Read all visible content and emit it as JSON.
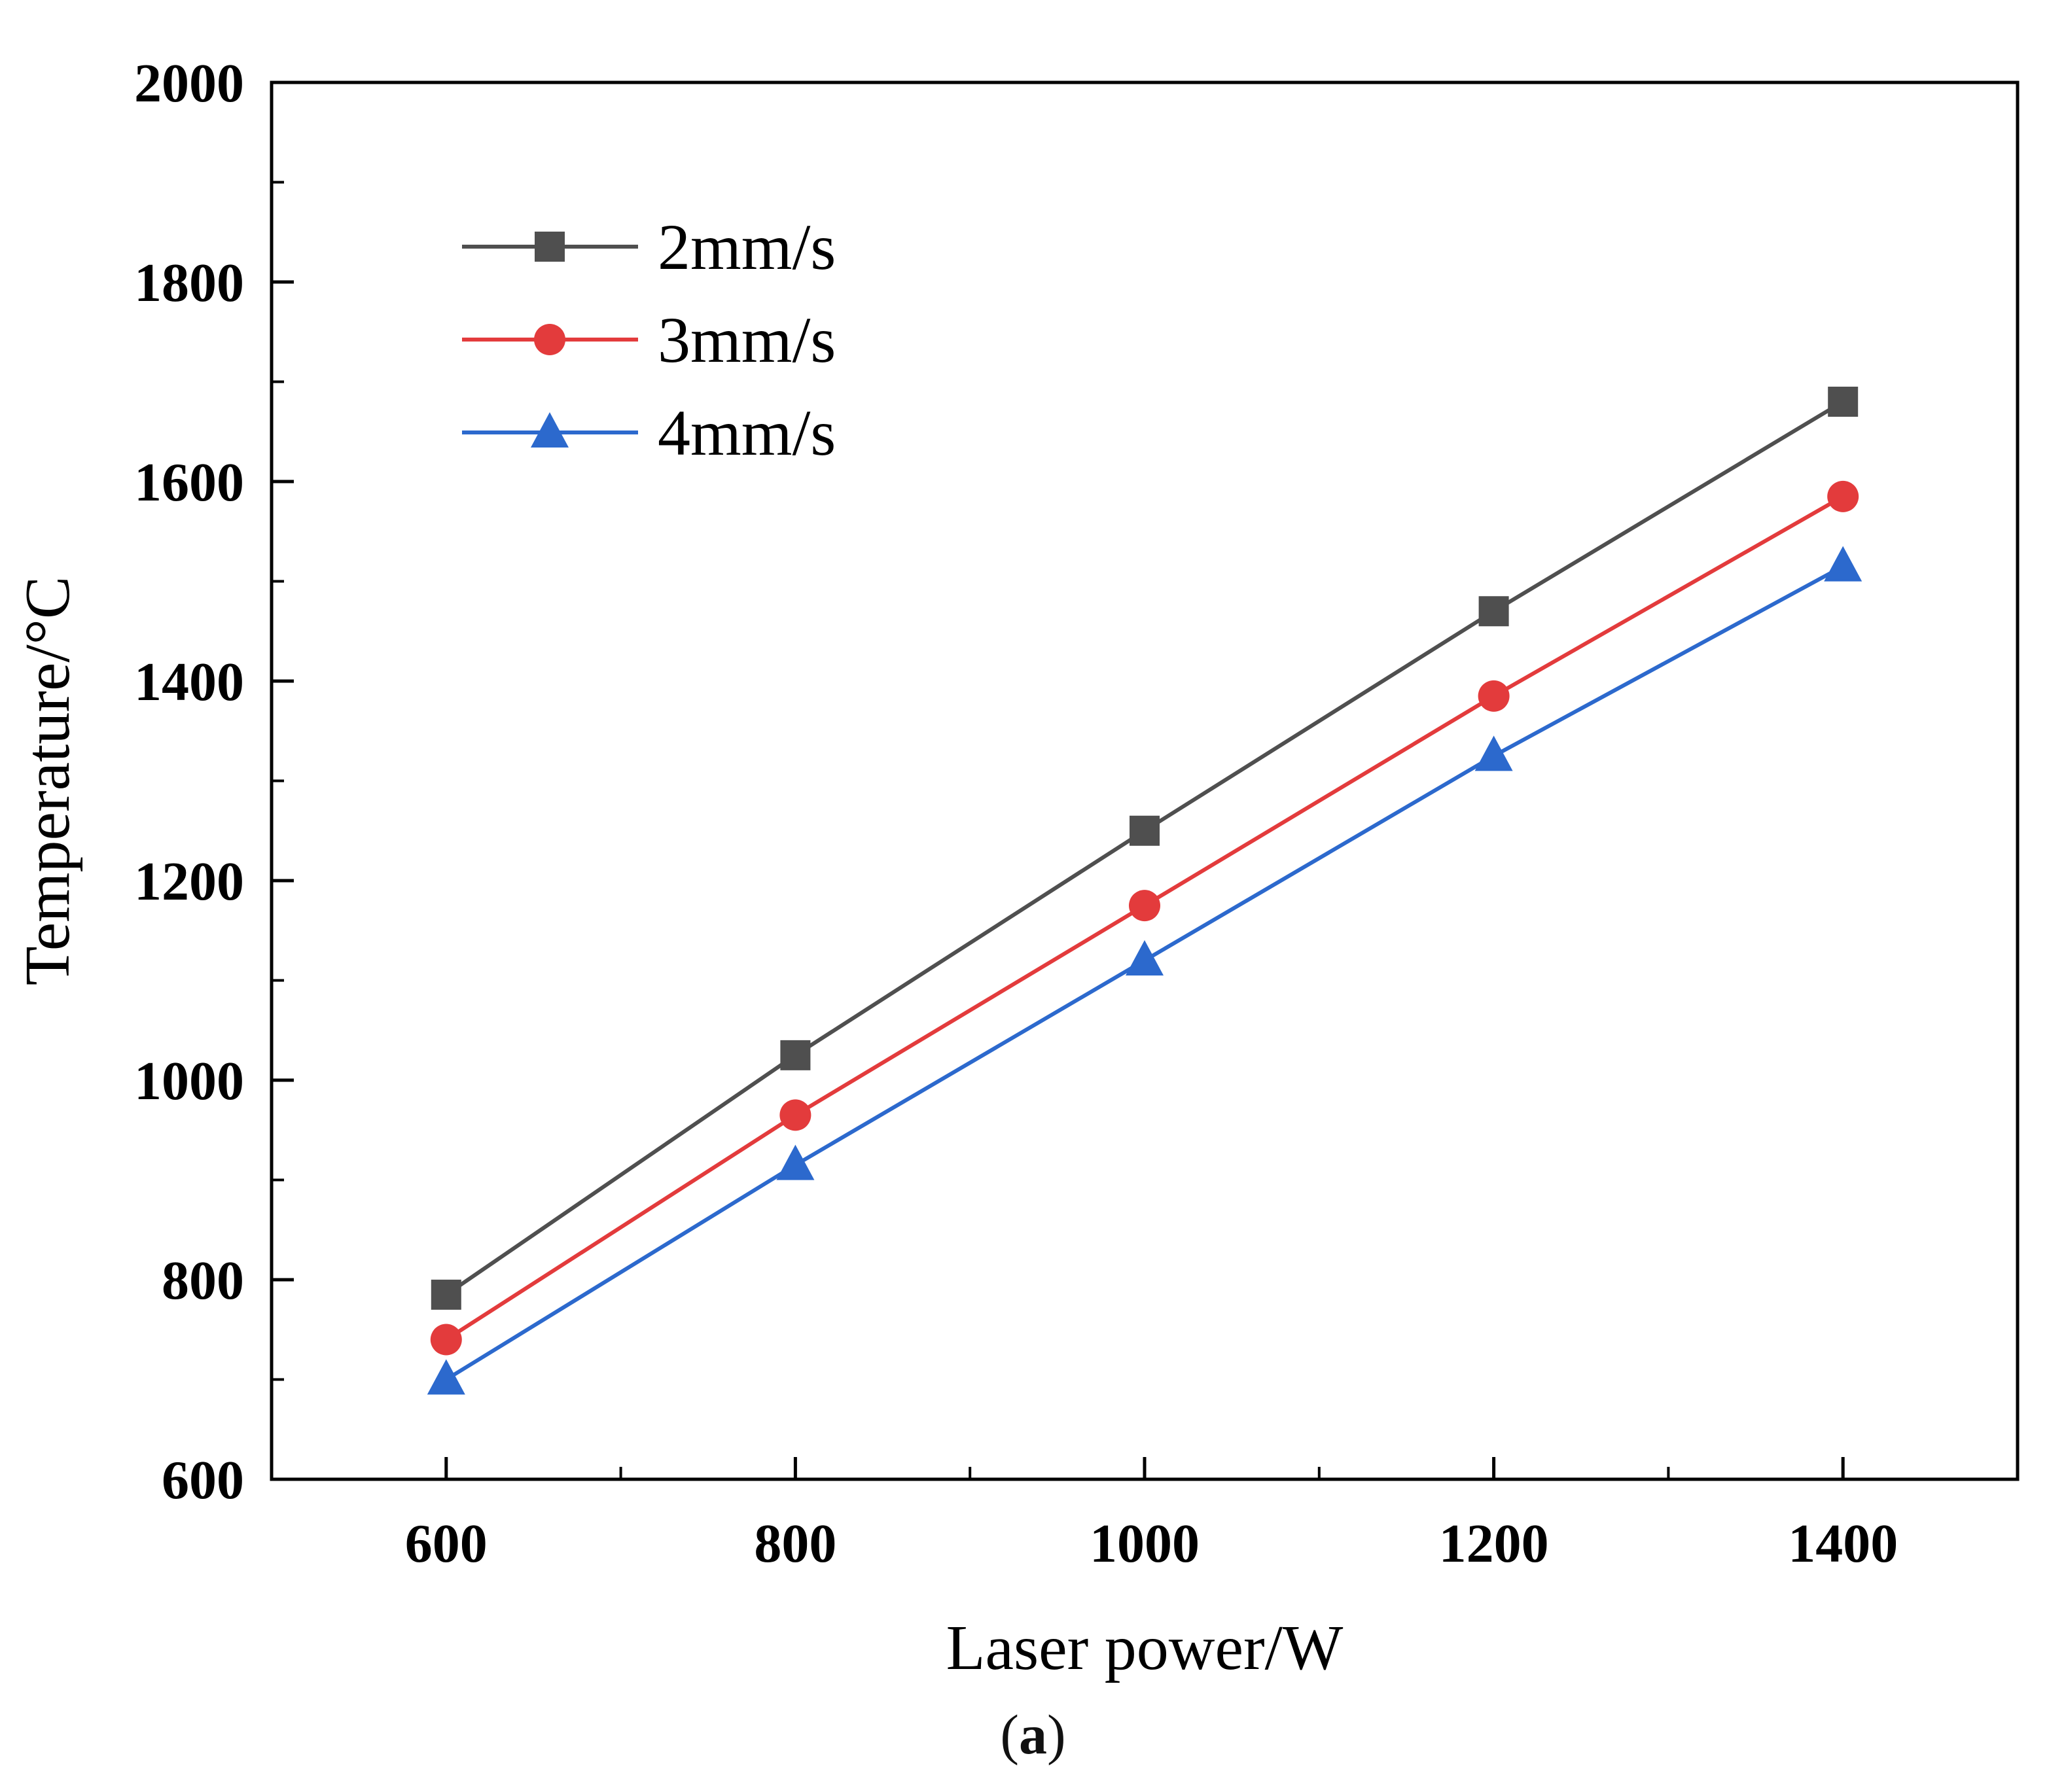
{
  "figure": {
    "caption_prefix": "(",
    "caption_letter": "a",
    "caption_suffix": ")"
  },
  "chart_data": {
    "type": "line",
    "title": "",
    "xlabel": "Laser power/W",
    "ylabel": "Temperature/°C",
    "x": [
      600,
      800,
      1000,
      1200,
      1400
    ],
    "xlim": [
      500,
      1500
    ],
    "ylim": [
      600,
      2000
    ],
    "x_major_ticks": [
      600,
      800,
      1000,
      1200,
      1400
    ],
    "y_major_ticks": [
      600,
      800,
      1000,
      1200,
      1400,
      1600,
      1800,
      2000
    ],
    "minor_tick_step": 100,
    "grid": "off",
    "legend_position": "top-left-inside",
    "axis_color": "#000000",
    "series": [
      {
        "name": "2mm/s",
        "color": "#4f4f4f",
        "marker": "square",
        "values": [
          785,
          1025,
          1250,
          1470,
          1680
        ]
      },
      {
        "name": "3mm/s",
        "color": "#e33b3c",
        "marker": "circle",
        "values": [
          740,
          965,
          1175,
          1385,
          1585
        ]
      },
      {
        "name": "4mm/s",
        "color": "#2c69cd",
        "marker": "triangle",
        "values": [
          700,
          915,
          1120,
          1325,
          1515
        ]
      }
    ]
  }
}
